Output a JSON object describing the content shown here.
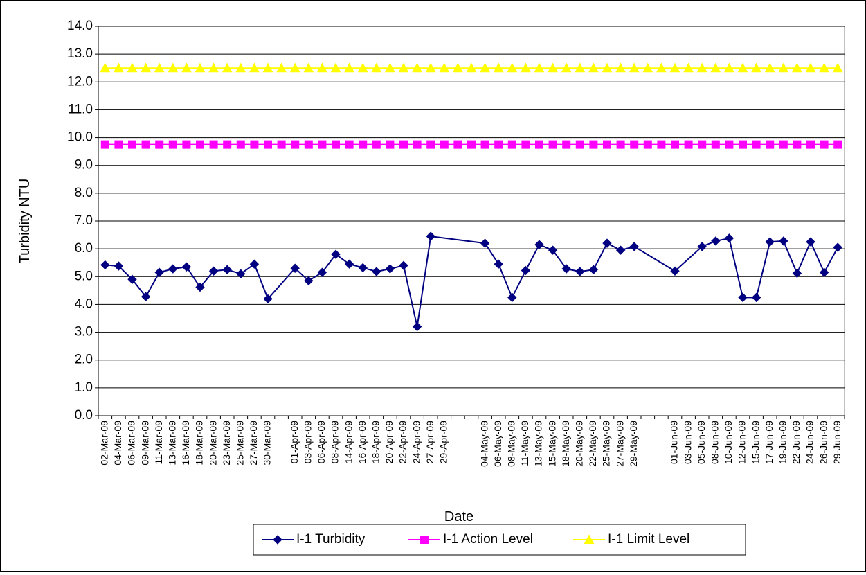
{
  "chart_data": {
    "type": "line",
    "y_label": "Turbidity NTU",
    "x_label": "Date",
    "categories": [
      "02-Mar-09",
      "04-Mar-09",
      "06-Mar-09",
      "09-Mar-09",
      "11-Mar-09",
      "13-Mar-09",
      "16-Mar-09",
      "18-Mar-09",
      "20-Mar-09",
      "23-Mar-09",
      "25-Mar-09",
      "27-Mar-09",
      "30-Mar-09",
      null,
      "01-Apr-09",
      "03-Apr-09",
      "06-Apr-09",
      "08-Apr-09",
      "14-Apr-09",
      "16-Apr-09",
      "18-Apr-09",
      "20-Apr-09",
      "22-Apr-09",
      "24-Apr-09",
      "27-Apr-09",
      "29-Apr-09",
      null,
      null,
      "04-May-09",
      "06-May-09",
      "08-May-09",
      "11-May-09",
      "13-May-09",
      "15-May-09",
      "18-May-09",
      "20-May-09",
      "22-May-09",
      "25-May-09",
      "27-May-09",
      "29-May-09",
      null,
      null,
      "01-Jun-09",
      "03-Jun-09",
      "05-Jun-09",
      "08-Jun-09",
      "10-Jun-09",
      "12-Jun-09",
      "15-Jun-09",
      "17-Jun-09",
      "19-Jun-09",
      "22-Jun-09",
      "24-Jun-09",
      "26-Jun-09",
      "29-Jun-09"
    ],
    "series": [
      {
        "name": "I-1 Turbidity",
        "color": "#000080",
        "marker": "diamond",
        "values": [
          5.42,
          5.38,
          4.9,
          4.28,
          5.15,
          5.28,
          5.35,
          4.62,
          5.2,
          5.25,
          5.1,
          5.45,
          4.2,
          null,
          5.3,
          4.85,
          5.15,
          5.8,
          5.45,
          5.32,
          5.18,
          5.28,
          5.4,
          3.2,
          6.45,
          null,
          null,
          null,
          6.2,
          5.45,
          4.25,
          5.22,
          6.15,
          5.95,
          5.28,
          5.18,
          5.25,
          6.2,
          5.95,
          6.08,
          null,
          null,
          5.2,
          null,
          6.08,
          6.28,
          6.38,
          4.25,
          4.25,
          6.25,
          6.28,
          5.12,
          6.25,
          5.15,
          6.05
        ]
      },
      {
        "name": "I-1 Action Level",
        "color": "#FF00FF",
        "marker": "square",
        "values": [
          9.75,
          9.75,
          9.75,
          9.75,
          9.75,
          9.75,
          9.75,
          9.75,
          9.75,
          9.75,
          9.75,
          9.75,
          9.75,
          9.75,
          9.75,
          9.75,
          9.75,
          9.75,
          9.75,
          9.75,
          9.75,
          9.75,
          9.75,
          9.75,
          9.75,
          9.75,
          9.75,
          9.75,
          9.75,
          9.75,
          9.75,
          9.75,
          9.75,
          9.75,
          9.75,
          9.75,
          9.75,
          9.75,
          9.75,
          9.75,
          9.75,
          9.75,
          9.75,
          9.75,
          9.75,
          9.75,
          9.75,
          9.75,
          9.75,
          9.75,
          9.75,
          9.75,
          9.75,
          9.75,
          9.75
        ]
      },
      {
        "name": "I-1 Limit Level",
        "color": "#FFFF00",
        "marker": "triangle",
        "values": [
          12.5,
          12.5,
          12.5,
          12.5,
          12.5,
          12.5,
          12.5,
          12.5,
          12.5,
          12.5,
          12.5,
          12.5,
          12.5,
          12.5,
          12.5,
          12.5,
          12.5,
          12.5,
          12.5,
          12.5,
          12.5,
          12.5,
          12.5,
          12.5,
          12.5,
          12.5,
          12.5,
          12.5,
          12.5,
          12.5,
          12.5,
          12.5,
          12.5,
          12.5,
          12.5,
          12.5,
          12.5,
          12.5,
          12.5,
          12.5,
          12.5,
          12.5,
          12.5,
          12.5,
          12.5,
          12.5,
          12.5,
          12.5,
          12.5,
          12.5,
          12.5,
          12.5,
          12.5,
          12.5,
          12.5
        ]
      }
    ],
    "ylim": [
      0,
      14
    ],
    "yticks": [
      {
        "value": 0,
        "label": "0.0"
      },
      {
        "value": 1,
        "label": "1.0"
      },
      {
        "value": 2,
        "label": "2.0"
      },
      {
        "value": 3,
        "label": "3.0"
      },
      {
        "value": 4,
        "label": "4.0"
      },
      {
        "value": 5,
        "label": "5.0"
      },
      {
        "value": 6,
        "label": "6.0"
      },
      {
        "value": 7,
        "label": "7.0"
      },
      {
        "value": 8,
        "label": "8.0"
      },
      {
        "value": 9,
        "label": "9.0"
      },
      {
        "value": 10,
        "label": "10.0"
      },
      {
        "value": 11,
        "label": "11.0"
      },
      {
        "value": 12,
        "label": "12.0"
      },
      {
        "value": 13,
        "label": "13.0"
      },
      {
        "value": 14,
        "label": "14.0"
      }
    ],
    "grid": true,
    "legend": "bottom"
  }
}
